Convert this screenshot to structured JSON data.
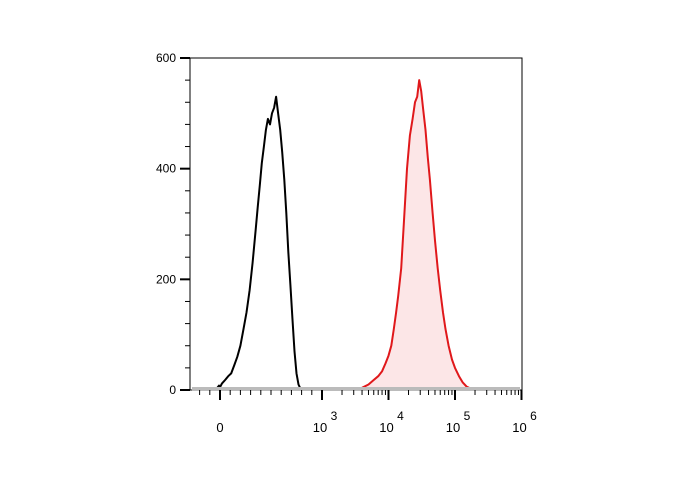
{
  "chart_data": {
    "type": "area",
    "title": "",
    "xlabel": "",
    "ylabel": "",
    "x_scale": "biexponential",
    "ylim": [
      0,
      600
    ],
    "y_ticks": [
      0,
      200,
      400,
      600
    ],
    "y_tick_labels": [
      "0",
      "200",
      "400",
      "600"
    ],
    "x_ticks": [
      {
        "value": 0,
        "label": "0",
        "exp": ""
      },
      {
        "value": 1000,
        "label": "10",
        "exp": "3"
      },
      {
        "value": 10000,
        "label": "10",
        "exp": "4"
      },
      {
        "value": 100000,
        "label": "10",
        "exp": "5"
      },
      {
        "value": 1000000,
        "label": "10",
        "exp": "6"
      }
    ],
    "grid": false,
    "legend": "none",
    "series": [
      {
        "color": "#000000",
        "fill": "none",
        "points": [
          [
            -50,
            0
          ],
          [
            -30,
            3
          ],
          [
            -10,
            8
          ],
          [
            0,
            5
          ],
          [
            20,
            12
          ],
          [
            50,
            18
          ],
          [
            80,
            25
          ],
          [
            110,
            30
          ],
          [
            140,
            45
          ],
          [
            170,
            60
          ],
          [
            200,
            80
          ],
          [
            230,
            110
          ],
          [
            260,
            140
          ],
          [
            290,
            180
          ],
          [
            320,
            230
          ],
          [
            350,
            290
          ],
          [
            370,
            330
          ],
          [
            390,
            370
          ],
          [
            410,
            410
          ],
          [
            430,
            440
          ],
          [
            450,
            470
          ],
          [
            470,
            490
          ],
          [
            490,
            480
          ],
          [
            510,
            500
          ],
          [
            530,
            510
          ],
          [
            550,
            530
          ],
          [
            570,
            500
          ],
          [
            590,
            470
          ],
          [
            610,
            430
          ],
          [
            630,
            380
          ],
          [
            650,
            320
          ],
          [
            670,
            250
          ],
          [
            690,
            190
          ],
          [
            710,
            130
          ],
          [
            730,
            70
          ],
          [
            750,
            30
          ],
          [
            770,
            10
          ],
          [
            790,
            2
          ],
          [
            810,
            0
          ]
        ]
      },
      {
        "color": "#e0181b",
        "fill": "#fce6e7",
        "points": [
          [
            3300,
            0
          ],
          [
            4000,
            4
          ],
          [
            5000,
            10
          ],
          [
            6000,
            18
          ],
          [
            7000,
            25
          ],
          [
            8000,
            34
          ],
          [
            9000,
            48
          ],
          [
            10000,
            62
          ],
          [
            11000,
            80
          ],
          [
            12000,
            110
          ],
          [
            13000,
            140
          ],
          [
            14000,
            170
          ],
          [
            15500,
            220
          ],
          [
            17000,
            300
          ],
          [
            19000,
            400
          ],
          [
            21000,
            460
          ],
          [
            23000,
            490
          ],
          [
            25000,
            520
          ],
          [
            27000,
            530
          ],
          [
            29000,
            560
          ],
          [
            31000,
            540
          ],
          [
            33000,
            510
          ],
          [
            36000,
            470
          ],
          [
            39000,
            420
          ],
          [
            42000,
            380
          ],
          [
            46000,
            320
          ],
          [
            50000,
            270
          ],
          [
            55000,
            220
          ],
          [
            60000,
            180
          ],
          [
            66000,
            140
          ],
          [
            72000,
            110
          ],
          [
            80000,
            80
          ],
          [
            90000,
            55
          ],
          [
            100000,
            40
          ],
          [
            115000,
            25
          ],
          [
            130000,
            14
          ],
          [
            150000,
            6
          ],
          [
            175000,
            2
          ],
          [
            200000,
            0
          ]
        ]
      }
    ]
  }
}
